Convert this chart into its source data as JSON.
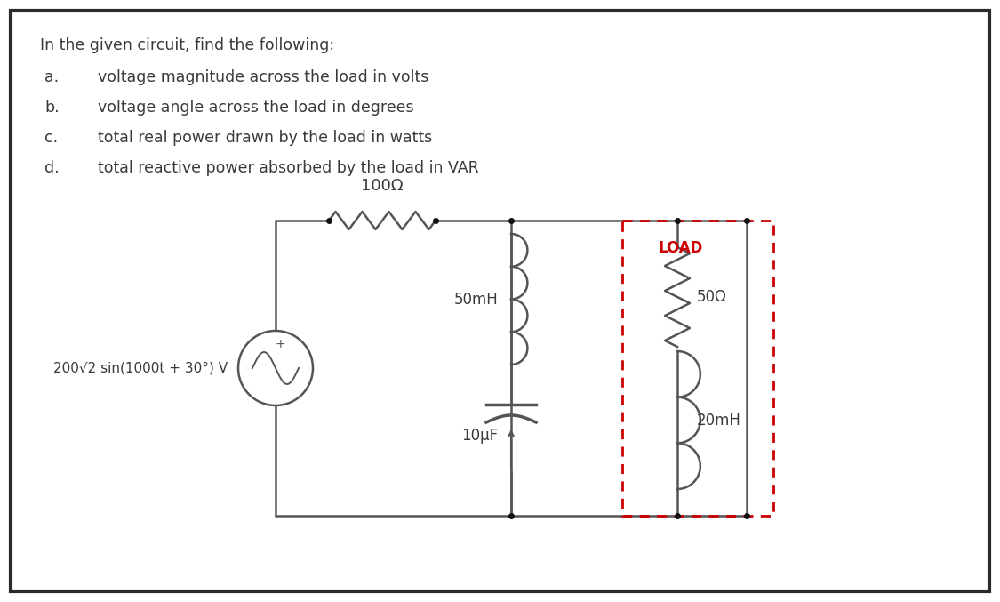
{
  "bg_color": "#ffffff",
  "border_color": "#2b2b2b",
  "text_color": "#3a3a3a",
  "red_color": "#cc0000",
  "wire_color": "#555555",
  "title_text": "In the given circuit, find the following:",
  "items": [
    [
      "a.",
      "voltage magnitude across the load in volts"
    ],
    [
      "b.",
      "voltage angle across the load in degrees"
    ],
    [
      "c.",
      "total real power drawn by the load in watts"
    ],
    [
      "d.",
      "total reactive power absorbed by the load in VAR"
    ]
  ],
  "resistor_label": "100Ω",
  "inductor_label": "50mH",
  "capacitor_label": "10μF",
  "source_label": "200√2 sin(1000t + 30°) V",
  "load_label": "LOAD",
  "load_r_label": "50Ω",
  "load_l_label": "20mH",
  "plus_sign": "+"
}
